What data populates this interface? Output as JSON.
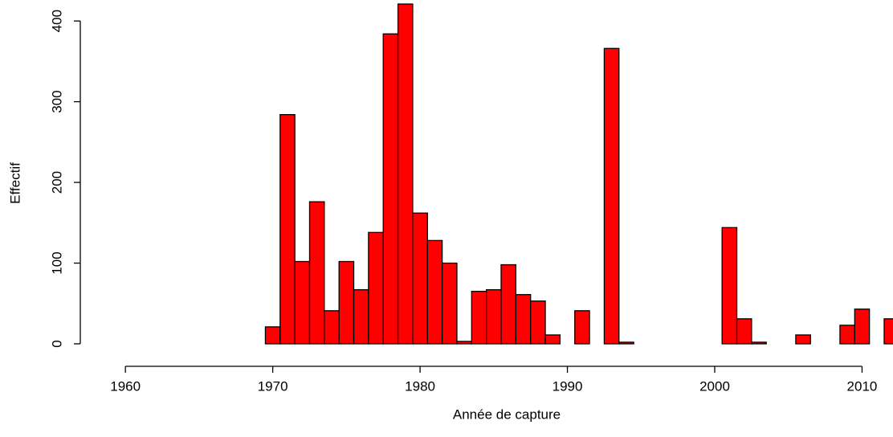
{
  "chart_data": {
    "type": "histogram",
    "x_label": "Année de capture",
    "y_label": "Effectif",
    "bins": [
      1959.5,
      1960.5,
      1961.5,
      1962.5,
      1963.5,
      1964.5,
      1965.5,
      1966.5,
      1967.5,
      1968.5,
      1969.5,
      1970.5,
      1971.5,
      1972.5,
      1973.5,
      1974.5,
      1975.5,
      1976.5,
      1977.5,
      1978.5,
      1979.5,
      1980.5,
      1981.5,
      1982.5,
      1983.5,
      1984.5,
      1985.5,
      1986.5,
      1987.5,
      1988.5,
      1989.5,
      1990.5,
      1991.5,
      1992.5,
      1993.5,
      1994.5,
      1995.5,
      1996.5,
      1997.5,
      1998.5,
      1999.5,
      2000.5,
      2001.5,
      2002.5,
      2003.5,
      2004.5,
      2005.5,
      2006.5,
      2007.5,
      2008.5,
      2009.5,
      2010.5,
      2011.5,
      2012.5
    ],
    "values": [
      0,
      0,
      0,
      0,
      0,
      0,
      0,
      0,
      0,
      0,
      21,
      284,
      102,
      176,
      41,
      102,
      67,
      138,
      384,
      421,
      162,
      128,
      100,
      3,
      65,
      67,
      98,
      61,
      53,
      11,
      0,
      41,
      0,
      366,
      2,
      0,
      0,
      0,
      0,
      0,
      0,
      144,
      31,
      2,
      0,
      0,
      11,
      0,
      0,
      23,
      43,
      0,
      31
    ],
    "color": "#ff0000",
    "xlim": [
      1959.5,
      2012.1
    ],
    "xticks": [
      1960,
      1970,
      1980,
      1990,
      2000,
      2010
    ],
    "ylim": [
      0,
      426
    ],
    "yticks": [
      0,
      100,
      200,
      300,
      400
    ]
  }
}
